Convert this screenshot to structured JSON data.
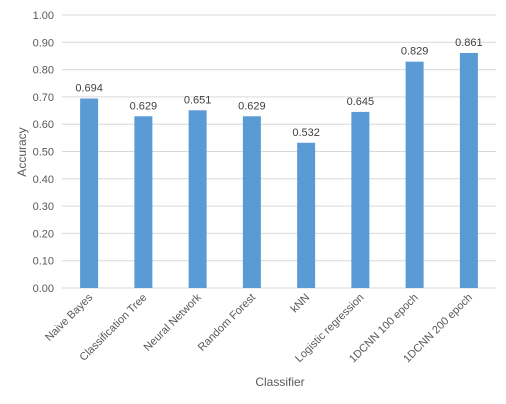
{
  "chart_data": {
    "type": "bar",
    "categories": [
      "Naive Bayes",
      "Classification Tree",
      "Neural Network",
      "Random Forest",
      "kNN",
      "Logistic regression",
      "1DCNN 100 epoch",
      "1DCNN 200 epoch"
    ],
    "values": [
      0.694,
      0.629,
      0.651,
      0.629,
      0.532,
      0.645,
      0.829,
      0.861
    ],
    "value_labels": [
      "0.694",
      "0.629",
      "0.651",
      "0.629",
      "0.532",
      "0.645",
      "0.829",
      "0.861"
    ],
    "xlabel": "Classifier",
    "ylabel": "Accuracy",
    "ylim": [
      0,
      1
    ],
    "yticks": [
      "0.00",
      "0.10",
      "0.20",
      "0.30",
      "0.40",
      "0.50",
      "0.60",
      "0.70",
      "0.80",
      "0.90",
      "1.00"
    ],
    "grid": true,
    "bar_color": "#5B9BD5"
  }
}
